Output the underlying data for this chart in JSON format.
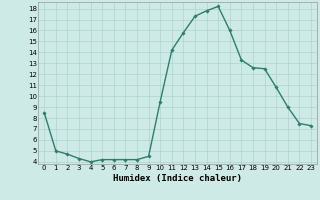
{
  "x": [
    0,
    1,
    2,
    3,
    4,
    5,
    6,
    7,
    8,
    9,
    10,
    11,
    12,
    13,
    14,
    15,
    16,
    17,
    18,
    19,
    20,
    21,
    22,
    23
  ],
  "y": [
    8.5,
    5.0,
    4.7,
    4.3,
    4.0,
    4.2,
    4.2,
    4.2,
    4.2,
    4.5,
    9.5,
    14.2,
    15.8,
    17.3,
    17.8,
    18.2,
    16.0,
    13.3,
    12.6,
    12.5,
    10.8,
    9.0,
    7.5,
    7.3
  ],
  "line_color": "#2e7d6e",
  "marker": "D",
  "marker_size": 1.8,
  "bg_color": "#ceeae6",
  "grid_color": "#aed4cf",
  "xlabel": "Humidex (Indice chaleur)",
  "xlim": [
    -0.5,
    23.5
  ],
  "ylim": [
    3.8,
    18.6
  ],
  "yticks": [
    4,
    5,
    6,
    7,
    8,
    9,
    10,
    11,
    12,
    13,
    14,
    15,
    16,
    17,
    18
  ],
  "xticks": [
    0,
    1,
    2,
    3,
    4,
    5,
    6,
    7,
    8,
    9,
    10,
    11,
    12,
    13,
    14,
    15,
    16,
    17,
    18,
    19,
    20,
    21,
    22,
    23
  ],
  "tick_fontsize": 5,
  "label_fontsize": 6.5,
  "line_width": 1.0
}
